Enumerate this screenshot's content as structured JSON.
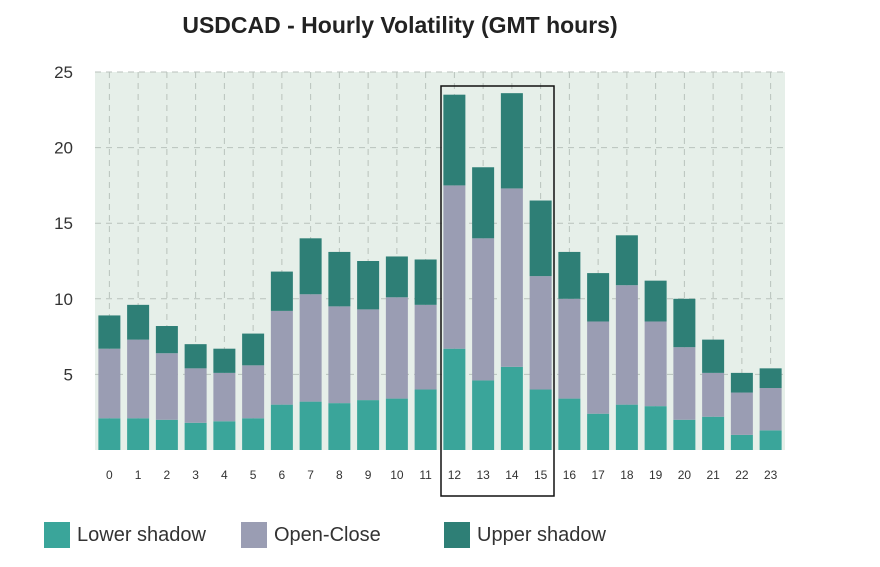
{
  "chart_data": {
    "type": "bar",
    "stacked": true,
    "title": "USDCAD - Hourly Volatility (GMT hours)",
    "xlabel": "",
    "ylabel": "",
    "ylim": [
      0,
      25
    ],
    "yticks": [
      "5",
      "10",
      "15",
      "20",
      "25"
    ],
    "categories": [
      "0",
      "1",
      "2",
      "3",
      "4",
      "5",
      "6",
      "7",
      "8",
      "9",
      "10",
      "11",
      "12",
      "13",
      "14",
      "15",
      "16",
      "17",
      "18",
      "19",
      "20",
      "21",
      "22",
      "23"
    ],
    "series": [
      {
        "name": "Lower shadow",
        "color": "#3aa59a",
        "values": [
          2.1,
          2.1,
          2.0,
          1.8,
          1.9,
          2.1,
          3.0,
          3.2,
          3.1,
          3.3,
          3.4,
          4.0,
          6.7,
          4.6,
          5.5,
          4.0,
          3.4,
          2.4,
          3.0,
          2.9,
          2.0,
          2.2,
          1.0,
          1.3
        ]
      },
      {
        "name": "Open-Close",
        "color": "#9a9db3",
        "values": [
          4.6,
          5.2,
          4.4,
          3.6,
          3.2,
          3.5,
          6.2,
          7.1,
          6.4,
          6.0,
          6.7,
          5.6,
          10.8,
          9.4,
          11.8,
          7.5,
          6.6,
          6.1,
          7.9,
          5.6,
          4.8,
          2.9,
          2.8,
          2.8
        ]
      },
      {
        "name": "Upper shadow",
        "color": "#2e7f76",
        "values": [
          2.2,
          2.3,
          1.8,
          1.6,
          1.6,
          2.1,
          2.6,
          3.7,
          3.6,
          3.2,
          2.7,
          3.0,
          6.0,
          4.7,
          6.3,
          5.0,
          3.1,
          3.2,
          3.3,
          2.7,
          3.2,
          2.2,
          1.3,
          1.3
        ]
      }
    ],
    "highlight": {
      "from": "12",
      "to": "15"
    },
    "grid": true,
    "legend_position": "bottom"
  }
}
